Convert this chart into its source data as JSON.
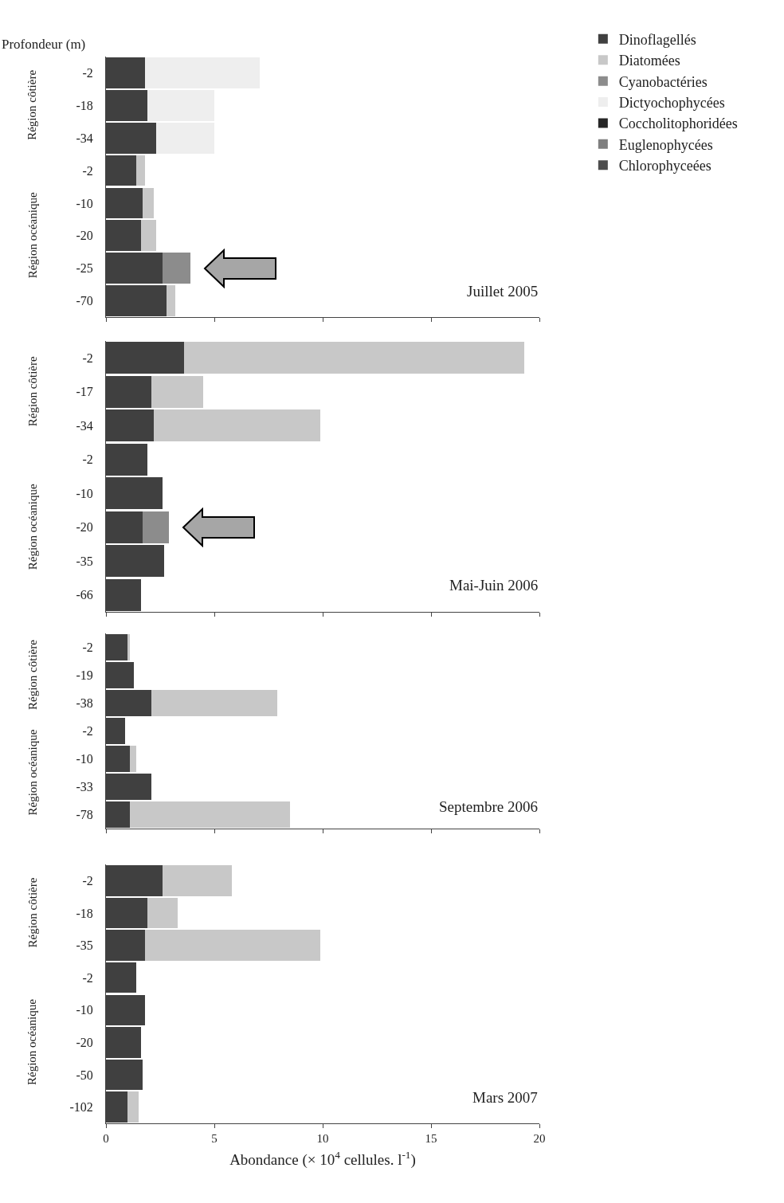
{
  "chart_data": [
    {
      "type": "bar",
      "orientation": "horizontal",
      "stacked": true,
      "title": "Juillet 2005",
      "ylabel": "Profondeur (m)",
      "categories": [
        "-2",
        "-18",
        "-34",
        "-2",
        "-10",
        "-20",
        "-25",
        "-70"
      ],
      "annotations": [
        "Région côtière",
        "Région océanique"
      ],
      "series": [
        {
          "name": "Dinoflagellés",
          "color": "#404040",
          "values": [
            1.8,
            1.9,
            2.3,
            1.4,
            1.7,
            1.6,
            2.6,
            2.8
          ]
        },
        {
          "name": "Diatomées",
          "color": "#c8c8c8",
          "values": [
            null,
            null,
            null,
            0.4,
            0.5,
            0.7,
            null,
            0.4
          ]
        },
        {
          "name": "Cyanobactéries",
          "color": "#8c8c8c",
          "values": [
            null,
            null,
            null,
            null,
            null,
            null,
            1.3,
            null
          ]
        },
        {
          "name": "Dictyochophycées",
          "color": "#eeeeee",
          "values": [
            5.3,
            3.1,
            2.7,
            null,
            null,
            null,
            null,
            null
          ]
        },
        {
          "name": "Coccholitophoridées",
          "color": "#262626",
          "values": [
            null,
            null,
            null,
            null,
            null,
            null,
            null,
            null
          ]
        },
        {
          "name": "Euglenophycées",
          "color": "#7f7f7f",
          "values": [
            null,
            null,
            null,
            null,
            null,
            null,
            null,
            null
          ]
        },
        {
          "name": "Chlorophyceées",
          "color": "#4d4d4d",
          "values": [
            null,
            null,
            null,
            null,
            null,
            null,
            null,
            null
          ]
        }
      ],
      "xlim": [
        0,
        20
      ],
      "xticks": [
        0,
        5,
        10,
        15,
        20
      ],
      "tick_labels": "y",
      "grid": false,
      "legend": "right"
    },
    {
      "type": "bar",
      "orientation": "horizontal",
      "stacked": true,
      "title": "Mai-Juin 2006",
      "categories": [
        "-2",
        "-17",
        "-34",
        "-2",
        "-10",
        "-20",
        "-35",
        "-66"
      ],
      "annotations": [
        "Région côtière",
        "Région océanique"
      ],
      "series": [
        {
          "color": "#404040",
          "values": [
            3.6,
            2.1,
            2.2,
            1.9,
            2.6,
            1.7,
            2.7,
            1.6
          ]
        },
        {
          "color": "#c8c8c8",
          "values": [
            15.7,
            2.4,
            7.7,
            null,
            null,
            null,
            null,
            null
          ]
        },
        {
          "color": "#8c8c8c",
          "values": [
            null,
            null,
            null,
            null,
            null,
            1.2,
            null,
            null
          ]
        }
      ],
      "xlim": [
        0,
        20
      ],
      "xticks": [
        0,
        5,
        10,
        15,
        20
      ],
      "tick_labels": "y",
      "grid": false,
      "legend": false
    },
    {
      "type": "bar",
      "orientation": "horizontal",
      "stacked": true,
      "title": "Septembre 2006",
      "categories": [
        "-2",
        "-19",
        "-38",
        "-2",
        "-10",
        "-33",
        "-78"
      ],
      "annotations": [
        "Région côtière",
        "Région océanique"
      ],
      "series": [
        {
          "color": "#404040",
          "values": [
            1.0,
            1.3,
            2.1,
            0.9,
            1.1,
            2.1,
            1.1
          ]
        },
        {
          "color": "#c8c8c8",
          "values": [
            0.1,
            null,
            5.8,
            null,
            0.3,
            null,
            7.4
          ]
        }
      ],
      "xlim": [
        0,
        20
      ],
      "xticks": [
        0,
        5,
        10,
        15,
        20
      ],
      "tick_labels": "y",
      "grid": false,
      "legend": false
    },
    {
      "type": "bar",
      "orientation": "horizontal",
      "stacked": true,
      "title": "Mars 2007",
      "xlabel": "Abondance (× 10$^{4}$ cellules. l$^{-1}$)",
      "categories": [
        "-2",
        "-18",
        "-35",
        "-2",
        "-10",
        "-20",
        "-50",
        "-102"
      ],
      "annotations": [
        "Région côtière",
        "Région océanique"
      ],
      "series": [
        {
          "color": "#404040",
          "values": [
            2.6,
            1.9,
            1.8,
            1.4,
            1.8,
            1.6,
            1.7,
            1.0
          ]
        },
        {
          "color": "#c8c8c8",
          "values": [
            3.2,
            1.4,
            8.1,
            null,
            null,
            null,
            null,
            0.5
          ]
        }
      ],
      "xlim": [
        0,
        20
      ],
      "xticks": [
        0,
        5,
        10,
        15,
        20
      ],
      "grid": false,
      "legend": false
    }
  ]
}
